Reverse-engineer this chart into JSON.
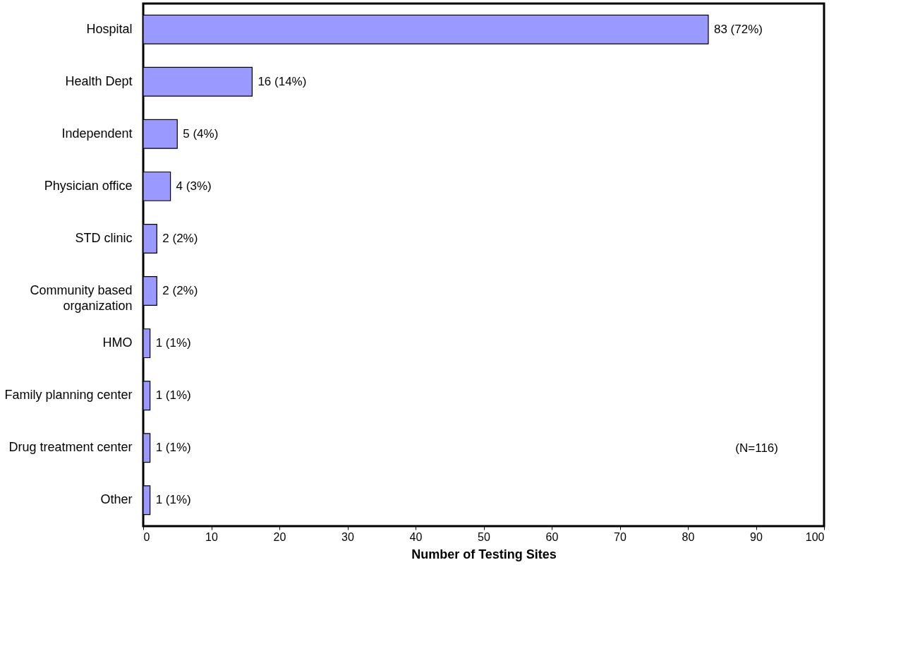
{
  "chart_data": {
    "type": "bar",
    "orientation": "horizontal",
    "xlabel": "Number of Testing Sites",
    "categories": [
      "Hospital",
      "Health Dept",
      "Independent",
      "Physician office",
      "STD clinic",
      "Community based\norganization",
      "HMO",
      "Family planning center",
      "Drug treatment center",
      "Other"
    ],
    "values": [
      83,
      16,
      5,
      4,
      2,
      2,
      1,
      1,
      1,
      1
    ],
    "value_labels": [
      "83 (72%)",
      "16 (14%)",
      "5 (4%)",
      "4 (3%)",
      "2 (2%)",
      "2 (2%)",
      "1 (1%)",
      "1 (1%)",
      "1 (1%)",
      "1 (1%)"
    ],
    "color": "#9999ff",
    "xlim": [
      0,
      100
    ],
    "xticks": [
      0,
      10,
      20,
      30,
      40,
      50,
      60,
      70,
      80,
      90,
      100
    ],
    "grid": false,
    "annotations": [
      "(N=116)"
    ]
  }
}
